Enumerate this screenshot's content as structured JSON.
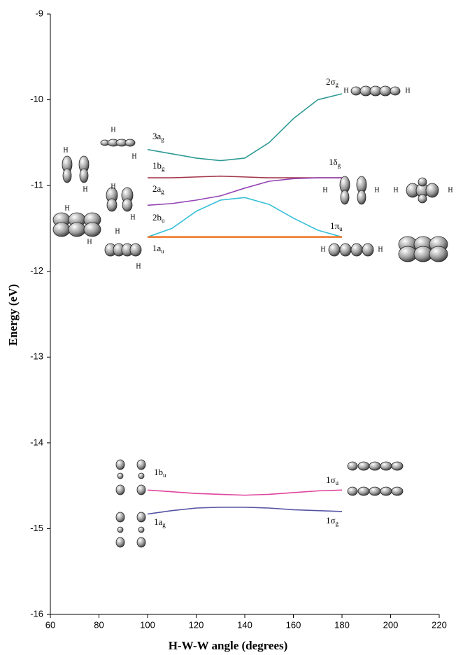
{
  "chart_data": {
    "type": "line",
    "xlabel": "H-W-W angle (degrees)",
    "ylabel": "Energy (eV)",
    "xlim": [
      60,
      220
    ],
    "xticks": [
      60,
      80,
      100,
      120,
      140,
      160,
      180,
      200,
      220
    ],
    "ylim": [
      -16,
      -9
    ],
    "yticks": [
      -16,
      -15,
      -14,
      -13,
      -12,
      -11,
      -10,
      -9
    ],
    "grid": false,
    "x": [
      100,
      110,
      120,
      130,
      140,
      150,
      160,
      170,
      180
    ],
    "series": [
      {
        "color": "#2f9a94",
        "values": [
          -10.58,
          -10.63,
          -10.68,
          -10.71,
          -10.68,
          -10.5,
          -10.22,
          -10.0,
          -9.93
        ]
      },
      {
        "color": "#a3364a",
        "values": [
          -10.91,
          -10.91,
          -10.9,
          -10.89,
          -10.9,
          -10.91,
          -10.91,
          -10.91,
          -10.91
        ]
      },
      {
        "color": "#9444b4",
        "values": [
          -11.23,
          -11.21,
          -11.17,
          -11.12,
          -11.03,
          -10.95,
          -10.92,
          -10.91,
          -10.91
        ]
      },
      {
        "color": "#38c0d8",
        "values": [
          -11.6,
          -11.5,
          -11.3,
          -11.17,
          -11.14,
          -11.22,
          -11.38,
          -11.52,
          -11.6
        ]
      },
      {
        "color": "#f07422",
        "values": [
          -11.6,
          -11.6,
          -11.6,
          -11.6,
          -11.6,
          -11.6,
          -11.6,
          -11.6,
          -11.6
        ]
      },
      {
        "color": "#e0449c",
        "values": [
          -14.55,
          -14.57,
          -14.59,
          -14.6,
          -14.61,
          -14.6,
          -14.58,
          -14.56,
          -14.55
        ]
      },
      {
        "color": "#5454a4",
        "values": [
          -14.83,
          -14.79,
          -14.76,
          -14.75,
          -14.75,
          -14.76,
          -14.78,
          -14.79,
          -14.8
        ]
      }
    ],
    "annotations": [
      {
        "text": "3a",
        "sub": "g"
      },
      {
        "text": "1b",
        "sub": "g"
      },
      {
        "text": "2a",
        "sub": "g"
      },
      {
        "text": "2b",
        "sub": "u"
      },
      {
        "text": "1a",
        "sub": "u"
      },
      {
        "text": "1b",
        "sub": "u"
      },
      {
        "text": "1a",
        "sub": "g"
      },
      {
        "text": "2σ",
        "sub": "g"
      },
      {
        "text": "1δ",
        "sub": "g"
      },
      {
        "text": "1π",
        "sub": "u"
      },
      {
        "text": "1σ",
        "sub": "u"
      },
      {
        "text": "1σ",
        "sub": "g"
      }
    ]
  },
  "orbital_atom_label": "H"
}
